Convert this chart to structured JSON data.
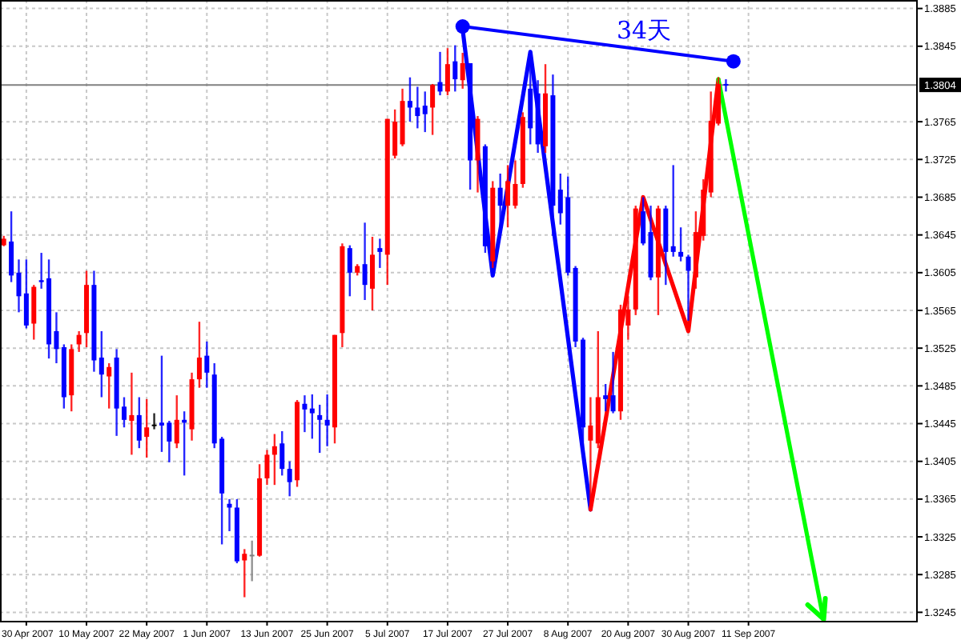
{
  "chart_data": {
    "type": "candlestick",
    "categories": [
      null,
      null,
      null,
      "30 Apr 2007",
      null,
      null,
      null,
      null,
      null,
      null,
      null,
      "10 May 2007",
      null,
      null,
      null,
      null,
      null,
      null,
      null,
      "22 May 2007",
      null,
      null,
      null,
      null,
      null,
      null,
      null,
      "1 Jun 2007",
      null,
      null,
      null,
      null,
      null,
      null,
      null,
      "13 Jun 2007",
      null,
      null,
      null,
      null,
      null,
      null,
      null,
      "25 Jun 2007",
      null,
      null,
      null,
      null,
      null,
      null,
      null,
      "5 Jul 2007",
      null,
      null,
      null,
      null,
      null,
      null,
      null,
      "17 Jul 2007",
      null,
      null,
      null,
      null,
      null,
      null,
      null,
      "27 Jul 2007",
      null,
      null,
      null,
      null,
      null,
      null,
      null,
      "8 Aug 2007",
      null,
      null,
      null,
      null,
      null,
      null,
      null,
      "20 Aug 2007",
      null,
      null,
      null,
      null,
      null,
      null,
      null,
      "30 Aug 2007",
      null,
      null,
      null,
      null,
      null,
      null,
      null,
      "11 Sep 2007",
      null,
      null,
      null,
      null,
      null,
      null,
      null,
      null,
      null,
      null,
      null,
      null,
      null,
      null,
      null,
      null,
      null,
      null,
      null,
      null,
      null,
      null
    ],
    "ohlc": [
      [
        1.3634,
        1.3644,
        1.3633,
        1.3641
      ],
      [
        1.3638,
        1.367,
        1.3595,
        1.3602
      ],
      [
        1.3605,
        1.3619,
        1.3563,
        1.358
      ],
      [
        1.3583,
        1.3619,
        1.3546,
        1.3549
      ],
      [
        1.3551,
        1.3592,
        1.3534,
        1.359
      ],
      [
        1.3597,
        1.3626,
        1.3588,
        1.3595
      ],
      [
        1.3599,
        1.3619,
        1.3514,
        1.3529
      ],
      [
        1.3543,
        1.3563,
        1.3509,
        1.3524
      ],
      [
        1.3526,
        1.3529,
        1.3461,
        1.3473
      ],
      [
        1.3475,
        1.3529,
        1.3458,
        1.3524
      ],
      [
        1.3529,
        1.3543,
        1.3521,
        1.3539
      ],
      [
        1.3541,
        1.3607,
        1.3526,
        1.3592
      ],
      [
        1.3592,
        1.3607,
        1.35,
        1.3512
      ],
      [
        1.3515,
        1.3543,
        1.3473,
        1.3497
      ],
      [
        1.3495,
        1.3509,
        1.3461,
        1.3505
      ],
      [
        1.3515,
        1.3524,
        1.3432,
        1.3461
      ],
      [
        1.3463,
        1.3473,
        1.3441,
        1.3449
      ],
      [
        1.3448,
        1.3499,
        1.3412,
        1.3454
      ],
      [
        1.3454,
        1.3473,
        1.3419,
        1.3427
      ],
      [
        1.3431,
        1.3471,
        1.3409,
        1.3441
      ],
      [
        1.3444,
        1.3456,
        1.3439,
        1.3444
      ],
      [
        1.3446,
        1.3517,
        1.3415,
        1.3443
      ],
      [
        1.3446,
        1.3448,
        1.3404,
        1.3426
      ],
      [
        1.3424,
        1.3475,
        1.3419,
        1.3449
      ],
      [
        1.3449,
        1.3458,
        1.339,
        1.3446
      ],
      [
        1.3439,
        1.3499,
        1.3427,
        1.3492
      ],
      [
        1.3492,
        1.3553,
        1.3483,
        1.3515
      ],
      [
        1.3517,
        1.3532,
        1.3483,
        1.3499
      ],
      [
        1.3497,
        1.3509,
        1.3419,
        1.3424
      ],
      [
        1.3429,
        1.3431,
        1.3317,
        1.3371
      ],
      [
        1.336,
        1.3365,
        1.3331,
        1.3356
      ],
      [
        1.3356,
        1.3365,
        1.3297,
        1.3299
      ],
      [
        1.33,
        1.3312,
        1.3261,
        1.3307
      ],
      [
        1.3306,
        1.3321,
        1.3278,
        1.3306
      ],
      [
        1.3305,
        1.3402,
        1.3304,
        1.3387
      ],
      [
        1.3387,
        1.3417,
        1.338,
        1.3412
      ],
      [
        1.3412,
        1.3434,
        1.338,
        1.3421
      ],
      [
        1.3424,
        1.3437,
        1.339,
        1.3397
      ],
      [
        1.3397,
        1.3405,
        1.3368,
        1.3383
      ],
      [
        1.3385,
        1.347,
        1.3378,
        1.3468
      ],
      [
        1.3466,
        1.3475,
        1.3436,
        1.346
      ],
      [
        1.3461,
        1.3476,
        1.3429,
        1.3456
      ],
      [
        1.3454,
        1.3465,
        1.3414,
        1.3449
      ],
      [
        1.3449,
        1.3476,
        1.3421,
        1.3443
      ],
      [
        1.3441,
        1.3539,
        1.3424,
        1.3539
      ],
      [
        1.3541,
        1.3636,
        1.3526,
        1.3633
      ],
      [
        1.3631,
        1.3634,
        1.358,
        1.3605
      ],
      [
        1.3605,
        1.3614,
        1.3602,
        1.3612
      ],
      [
        1.3614,
        1.3658,
        1.3576,
        1.3592
      ],
      [
        1.3588,
        1.3643,
        1.3565,
        1.3624
      ],
      [
        1.3631,
        1.3641,
        1.361,
        1.3627
      ],
      [
        1.3624,
        1.3768,
        1.3592,
        1.3768
      ],
      [
        1.3729,
        1.3778,
        1.3726,
        1.3765
      ],
      [
        1.3741,
        1.38,
        1.3739,
        1.3787
      ],
      [
        1.3787,
        1.3812,
        1.3765,
        1.378
      ],
      [
        1.378,
        1.3802,
        1.3758,
        1.3771
      ],
      [
        1.3782,
        1.3797,
        1.3754,
        1.3773
      ],
      [
        1.378,
        1.3805,
        1.3751,
        1.3804
      ],
      [
        1.3807,
        1.3839,
        1.3793,
        1.3797
      ],
      [
        1.3797,
        1.3843,
        1.3793,
        1.3826
      ],
      [
        1.3829,
        1.3846,
        1.3797,
        1.381
      ],
      [
        1.3809,
        1.3838,
        1.38,
        1.3827
      ],
      [
        1.3827,
        1.3827,
        1.3693,
        1.3724
      ],
      [
        1.3724,
        1.3771,
        1.369,
        1.3768
      ],
      [
        1.3739,
        1.3741,
        1.3626,
        1.3633
      ],
      [
        1.3617,
        1.3702,
        1.361,
        1.3695
      ],
      [
        1.3695,
        1.371,
        1.3651,
        1.3676
      ],
      [
        1.3676,
        1.3719,
        1.3653,
        1.3702
      ],
      [
        1.3676,
        1.3724,
        1.3673,
        1.3699
      ],
      [
        1.3699,
        1.3775,
        1.3695,
        1.377
      ],
      [
        1.38,
        1.3839,
        1.3741,
        1.3758
      ],
      [
        1.3795,
        1.3809,
        1.3732,
        1.3741
      ],
      [
        1.3739,
        1.3826,
        1.3732,
        1.3795
      ],
      [
        1.3793,
        1.3815,
        1.3644,
        1.3676
      ],
      [
        1.3693,
        1.371,
        1.3656,
        1.3668
      ],
      [
        1.3685,
        1.3707,
        1.3602,
        1.3605
      ],
      [
        1.361,
        1.3612,
        1.3526,
        1.3532
      ],
      [
        1.3534,
        1.3536,
        1.3419,
        1.3441
      ],
      [
        1.3427,
        1.3473,
        1.3354,
        1.3443
      ],
      [
        1.3424,
        1.3543,
        1.3419,
        1.3473
      ],
      [
        1.3475,
        1.3487,
        1.3458,
        1.3471
      ],
      [
        1.3475,
        1.3521,
        1.3456,
        1.3458
      ],
      [
        1.3458,
        1.3571,
        1.3449,
        1.3566
      ],
      [
        1.3549,
        1.358,
        1.3534,
        1.3566
      ],
      [
        1.3566,
        1.3676,
        1.356,
        1.3673
      ],
      [
        1.367,
        1.3685,
        1.3634,
        1.3636
      ],
      [
        1.3648,
        1.3676,
        1.3597,
        1.36
      ],
      [
        1.36,
        1.3676,
        1.356,
        1.3673
      ],
      [
        1.3673,
        1.3676,
        1.3592,
        1.3627
      ],
      [
        1.3633,
        1.3719,
        1.3622,
        1.3627
      ],
      [
        1.3627,
        1.3653,
        1.3617,
        1.3622
      ],
      [
        1.3622,
        1.3624,
        1.3554,
        1.3607
      ],
      [
        1.36,
        1.367,
        1.3588,
        1.3648
      ],
      [
        1.3644,
        1.3704,
        1.3639,
        1.3693
      ],
      [
        1.369,
        1.3797,
        1.3685,
        1.3766
      ],
      [
        1.3763,
        1.3812,
        1.3761,
        1.3805
      ],
      [
        1.3805,
        1.381,
        1.3797,
        1.3804
      ],
      null,
      null,
      null,
      null,
      null,
      null,
      null,
      null,
      null,
      null,
      null,
      null,
      null,
      null,
      null,
      null,
      null,
      null,
      null,
      null,
      null,
      null,
      null,
      null,
      null
    ],
    "colors": [
      "#ff0000",
      "#0000ff",
      "#0000ff",
      "#0000ff",
      "#ff0000",
      "#0000ff",
      "#0000ff",
      "#0000ff",
      "#0000ff",
      "#ff0000",
      "#ff0000",
      "#ff0000",
      "#0000ff",
      "#0000ff",
      "#ff0000",
      "#0000ff",
      "#0000ff",
      "#ff0000",
      "#0000ff",
      "#ff0000",
      "#000000",
      "#0000ff",
      "#0000ff",
      "#ff0000",
      "#0000ff",
      "#ff0000",
      "#ff0000",
      "#0000ff",
      "#0000ff",
      "#0000ff",
      "#0000ff",
      "#0000ff",
      "#ff0000",
      "#808080",
      "#ff0000",
      "#ff0000",
      "#ff0000",
      "#0000ff",
      "#0000ff",
      "#ff0000",
      "#0000ff",
      "#0000ff",
      "#0000ff",
      "#0000ff",
      "#ff0000",
      "#ff0000",
      "#0000ff",
      "#ff0000",
      "#0000ff",
      "#ff0000",
      "#0000ff",
      "#ff0000",
      "#ff0000",
      "#ff0000",
      "#0000ff",
      "#0000ff",
      "#0000ff",
      "#ff0000",
      "#0000ff",
      "#ff0000",
      "#0000ff",
      "#ff0000",
      "#0000ff",
      "#ff0000",
      "#0000ff",
      "#ff0000",
      "#0000ff",
      "#ff0000",
      "#ff0000",
      "#ff0000",
      "#0000ff",
      "#0000ff",
      "#ff0000",
      "#0000ff",
      "#0000ff",
      "#0000ff",
      "#0000ff",
      "#0000ff",
      "#ff0000",
      "#ff0000",
      "#0000ff",
      "#0000ff",
      "#ff0000",
      "#ff0000",
      "#ff0000",
      "#0000ff",
      "#0000ff",
      "#ff0000",
      "#0000ff",
      "#0000ff",
      "#0000ff",
      "#0000ff",
      "#ff0000",
      "#ff0000",
      "#ff0000",
      "#ff0000",
      "#0000ff",
      null,
      null,
      null,
      null,
      null,
      null,
      null,
      null,
      null,
      null,
      null,
      null,
      null,
      null,
      null,
      null,
      null,
      null,
      null,
      null,
      null,
      null,
      null,
      null,
      null
    ],
    "series": [
      {
        "type": "line",
        "color": "#0000ff",
        "marker": "circle",
        "values": [
          null,
          null,
          null,
          null,
          null,
          null,
          null,
          null,
          null,
          null,
          null,
          null,
          null,
          null,
          null,
          null,
          null,
          null,
          null,
          null,
          null,
          null,
          null,
          null,
          null,
          null,
          null,
          null,
          null,
          null,
          null,
          null,
          null,
          null,
          null,
          null,
          null,
          null,
          null,
          null,
          null,
          null,
          null,
          null,
          null,
          null,
          null,
          null,
          null,
          null,
          null,
          null,
          null,
          null,
          null,
          null,
          null,
          null,
          null,
          null,
          null,
          1.3866,
          null,
          null,
          null,
          null,
          null,
          null,
          null,
          null,
          null,
          null,
          null,
          null,
          null,
          null,
          null,
          null,
          null,
          null,
          null,
          null,
          null,
          null,
          null,
          null,
          null,
          null,
          null,
          null,
          null,
          null,
          null,
          null,
          null,
          null,
          null,
          1.3829,
          null,
          null,
          null,
          null,
          null,
          null,
          null,
          null,
          null,
          null,
          null,
          null,
          null,
          null,
          null,
          null,
          null,
          null,
          null,
          null,
          null,
          null,
          null,
          null
        ]
      },
      {
        "type": "line",
        "color": "#0000ff",
        "values": [
          null,
          null,
          null,
          null,
          null,
          null,
          null,
          null,
          null,
          null,
          null,
          null,
          null,
          null,
          null,
          null,
          null,
          null,
          null,
          null,
          null,
          null,
          null,
          null,
          null,
          null,
          null,
          null,
          null,
          null,
          null,
          null,
          null,
          null,
          null,
          null,
          null,
          null,
          null,
          null,
          null,
          null,
          null,
          null,
          null,
          null,
          null,
          null,
          null,
          null,
          null,
          null,
          null,
          null,
          null,
          null,
          null,
          null,
          null,
          null,
          null,
          1.3863,
          null,
          null,
          null,
          1.3602,
          null,
          null,
          null,
          null,
          1.3839,
          null,
          null,
          null,
          null,
          null,
          null,
          null,
          1.3354,
          null,
          null,
          null,
          null,
          null,
          null,
          null,
          null,
          null,
          null,
          null,
          null,
          null,
          null,
          null,
          null,
          null,
          null,
          null,
          null,
          null,
          null,
          null,
          null,
          null,
          null,
          null,
          null,
          null,
          null,
          null,
          null,
          null,
          null,
          null,
          null,
          null,
          null,
          null,
          null,
          null,
          null,
          null
        ]
      },
      {
        "type": "line",
        "color": "#ff0000",
        "values": [
          null,
          null,
          null,
          null,
          null,
          null,
          null,
          null,
          null,
          null,
          null,
          null,
          null,
          null,
          null,
          null,
          null,
          null,
          null,
          null,
          null,
          null,
          null,
          null,
          null,
          null,
          null,
          null,
          null,
          null,
          null,
          null,
          null,
          null,
          null,
          null,
          null,
          null,
          null,
          null,
          null,
          null,
          null,
          null,
          null,
          null,
          null,
          null,
          null,
          null,
          null,
          null,
          null,
          null,
          null,
          null,
          null,
          null,
          null,
          null,
          null,
          null,
          null,
          null,
          null,
          null,
          null,
          null,
          null,
          null,
          null,
          null,
          null,
          null,
          null,
          null,
          null,
          null,
          1.3354,
          null,
          null,
          null,
          null,
          null,
          null,
          1.3685,
          null,
          null,
          null,
          null,
          null,
          1.3543,
          null,
          null,
          null,
          1.381,
          null,
          null,
          null,
          null,
          null,
          null,
          null,
          null,
          null,
          null,
          null,
          null,
          null,
          null,
          null,
          null,
          null,
          null,
          null,
          null,
          null,
          null,
          null,
          null,
          null,
          null
        ]
      },
      {
        "type": "line",
        "color": "#00ff00",
        "values": [
          null,
          null,
          null,
          null,
          null,
          null,
          null,
          null,
          null,
          null,
          null,
          null,
          null,
          null,
          null,
          null,
          null,
          null,
          null,
          null,
          null,
          null,
          null,
          null,
          null,
          null,
          null,
          null,
          null,
          null,
          null,
          null,
          null,
          null,
          null,
          null,
          null,
          null,
          null,
          null,
          null,
          null,
          null,
          null,
          null,
          null,
          null,
          null,
          null,
          null,
          null,
          null,
          null,
          null,
          null,
          null,
          null,
          null,
          null,
          null,
          null,
          null,
          null,
          null,
          null,
          null,
          null,
          null,
          null,
          null,
          null,
          null,
          null,
          null,
          null,
          null,
          null,
          null,
          null,
          null,
          null,
          null,
          null,
          null,
          null,
          null,
          null,
          null,
          null,
          null,
          null,
          null,
          null,
          null,
          null,
          1.381,
          null,
          null,
          null,
          null,
          null,
          null,
          null,
          null,
          null,
          null,
          null,
          null,
          null,
          1.3236,
          null,
          null,
          null,
          null,
          null,
          null,
          null,
          null,
          null,
          null,
          null,
          null
        ]
      }
    ],
    "annotations": [
      "34天"
    ],
    "ref_lines": [
      {
        "axis": "y",
        "value": 1.3804,
        "label": "1.3804",
        "color": "#808080"
      }
    ],
    "ylim": [
      1.3236,
      1.3894
    ],
    "yticks": [
      1.3245,
      1.3285,
      1.3325,
      1.3365,
      1.3405,
      1.3445,
      1.3485,
      1.3525,
      1.3565,
      1.3605,
      1.3645,
      1.3685,
      1.3725,
      1.3765,
      1.3845,
      1.3885
    ],
    "grid": true
  }
}
